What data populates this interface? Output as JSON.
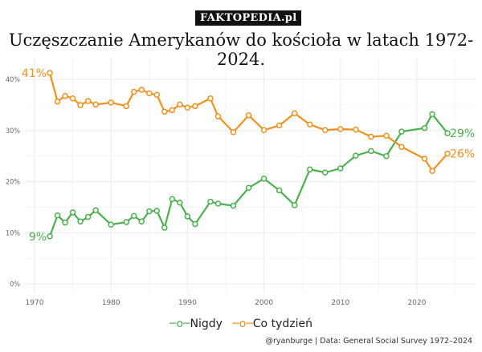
{
  "watermark": "FAKTOPEDIA.pl",
  "chart_data": {
    "type": "line",
    "title": "Uczęszczanie Amerykanów do kościoła w latach 1972-2024.",
    "caption": "@ryanburge | Data: General Social Survey 1972–2024",
    "xlim": [
      1968,
      2027
    ],
    "ylim": [
      0,
      44
    ],
    "x_ticks": [
      "1970",
      "1980",
      "1990",
      "2000",
      "2010",
      "2020"
    ],
    "y_ticks": [
      "0%",
      "10%",
      "20%",
      "30%",
      "40%"
    ],
    "grid": true,
    "legend_position": "bottom",
    "x": [
      1972,
      1973,
      1974,
      1975,
      1976,
      1977,
      1978,
      1980,
      1982,
      1983,
      1984,
      1985,
      1986,
      1987,
      1988,
      1989,
      1990,
      1991,
      1993,
      1994,
      1996,
      1998,
      2000,
      2002,
      2004,
      2006,
      2008,
      2010,
      2012,
      2014,
      2016,
      2018,
      2021,
      2022,
      2024
    ],
    "series": [
      {
        "name": "Nigdy",
        "color": "#4caf50",
        "start_label": "9%",
        "end_label": "29%",
        "values": [
          9.3,
          13.4,
          12.0,
          14.0,
          12.2,
          13.1,
          14.4,
          11.6,
          12.1,
          13.3,
          12.2,
          14.2,
          14.3,
          11.0,
          16.6,
          15.9,
          13.2,
          11.7,
          16.1,
          15.7,
          15.3,
          18.8,
          20.6,
          18.3,
          15.4,
          22.4,
          21.8,
          22.6,
          25.1,
          26.0,
          25.0,
          29.8,
          30.5,
          33.2,
          29.5
        ]
      },
      {
        "name": "Co tydzień",
        "color": "#f0901e",
        "start_label": "41%",
        "end_label": "26%",
        "values": [
          41.3,
          35.7,
          36.8,
          36.3,
          35.0,
          35.8,
          35.1,
          35.5,
          34.8,
          37.6,
          38.0,
          37.3,
          37.0,
          33.7,
          34.0,
          35.1,
          34.5,
          34.8,
          36.3,
          32.8,
          29.7,
          33.0,
          30.1,
          31.0,
          33.4,
          31.2,
          30.1,
          30.3,
          30.2,
          28.8,
          29.0,
          26.8,
          24.5,
          22.1,
          25.5
        ]
      }
    ]
  }
}
